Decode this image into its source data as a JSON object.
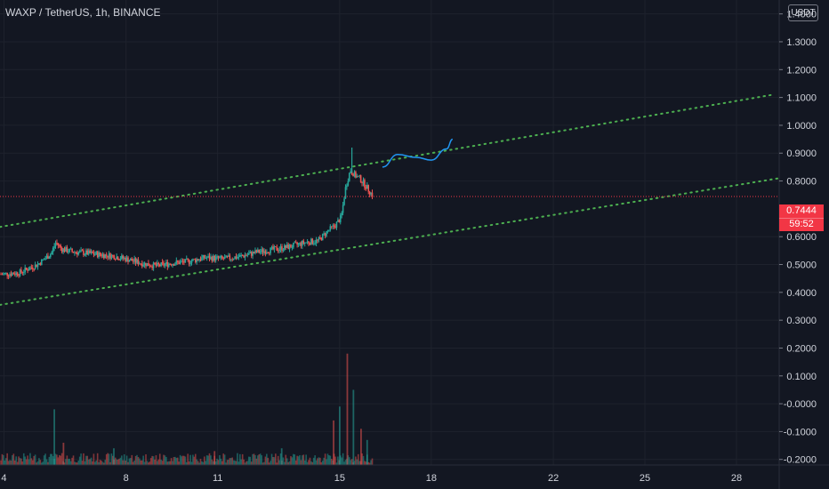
{
  "header": {
    "symbol_title": "WAXP / TetherUS, 1h, BINANCE",
    "currency": "USDT"
  },
  "price_tag": {
    "price": "0.7444",
    "countdown": "59:52",
    "color": "#f23645"
  },
  "colors": {
    "background": "#131722",
    "up": "#26a69a",
    "down": "#ef5350",
    "trendline": "#4caf50",
    "projection": "#2196f3",
    "grid": "#1e222d",
    "axis_text": "#d1d4dc",
    "price_line": "#f23645"
  },
  "chart_data": {
    "type": "candlestick",
    "symbol": "WAXP / TetherUS",
    "interval": "1h",
    "exchange": "BINANCE",
    "y_ticks": [
      "1.4000",
      "1.3000",
      "1.2000",
      "1.1000",
      "1.0000",
      "0.9000",
      "0.8000",
      "0.6000",
      "0.5000",
      "0.4000",
      "0.3000",
      "0.2000",
      "0.1000",
      "-0.0000",
      "-0.1000",
      "-0.2000"
    ],
    "x_ticks": [
      "4",
      "8",
      "11",
      "15",
      "18",
      "22",
      "25",
      "28"
    ],
    "x_tick_values": [
      4,
      8,
      11,
      15,
      18,
      22,
      25,
      28
    ],
    "ylim": [
      -0.22,
      1.45
    ],
    "xlim": [
      3.87,
      29.4
    ],
    "current_price": 0.7444,
    "price_path": [
      [
        3.9,
        0.465
      ],
      [
        4.5,
        0.47
      ],
      [
        5.1,
        0.5
      ],
      [
        5.55,
        0.54
      ],
      [
        5.7,
        0.58
      ],
      [
        5.9,
        0.555
      ],
      [
        6.3,
        0.545
      ],
      [
        6.8,
        0.54
      ],
      [
        7.2,
        0.535
      ],
      [
        7.6,
        0.53
      ],
      [
        8.0,
        0.52
      ],
      [
        8.5,
        0.505
      ],
      [
        9.0,
        0.495
      ],
      [
        9.5,
        0.505
      ],
      [
        10.0,
        0.51
      ],
      [
        10.6,
        0.525
      ],
      [
        11.2,
        0.52
      ],
      [
        11.8,
        0.53
      ],
      [
        12.3,
        0.545
      ],
      [
        12.9,
        0.555
      ],
      [
        13.4,
        0.565
      ],
      [
        13.9,
        0.58
      ],
      [
        14.3,
        0.585
      ],
      [
        14.6,
        0.62
      ],
      [
        14.85,
        0.64
      ],
      [
        15.05,
        0.67
      ],
      [
        15.2,
        0.78
      ],
      [
        15.35,
        0.84
      ],
      [
        15.5,
        0.82
      ],
      [
        15.65,
        0.81
      ],
      [
        15.8,
        0.79
      ],
      [
        16.0,
        0.76
      ],
      [
        16.1,
        0.745
      ]
    ],
    "trendlines": [
      {
        "style": "dotted",
        "points": [
          [
            3.87,
            0.635
          ],
          [
            29.2,
            1.11
          ]
        ]
      },
      {
        "style": "dotted",
        "points": [
          [
            3.87,
            0.355
          ],
          [
            29.4,
            0.81
          ]
        ]
      }
    ],
    "projection": [
      [
        16.4,
        0.85
      ],
      [
        16.9,
        0.895
      ],
      [
        17.5,
        0.885
      ],
      [
        18.0,
        0.875
      ],
      [
        18.5,
        0.915
      ],
      [
        18.7,
        0.95
      ]
    ],
    "volume_spikes": [
      {
        "x": 5.65,
        "h": 0.2
      },
      {
        "x": 5.95,
        "h": 0.08
      },
      {
        "x": 7.6,
        "h": 0.06
      },
      {
        "x": 10.9,
        "h": 0.05
      },
      {
        "x": 13.1,
        "h": 0.06
      },
      {
        "x": 14.8,
        "h": 0.16
      },
      {
        "x": 15.0,
        "h": 0.21
      },
      {
        "x": 15.25,
        "h": 0.4
      },
      {
        "x": 15.45,
        "h": 0.27
      },
      {
        "x": 15.7,
        "h": 0.13
      },
      {
        "x": 15.9,
        "h": 0.09
      }
    ]
  }
}
